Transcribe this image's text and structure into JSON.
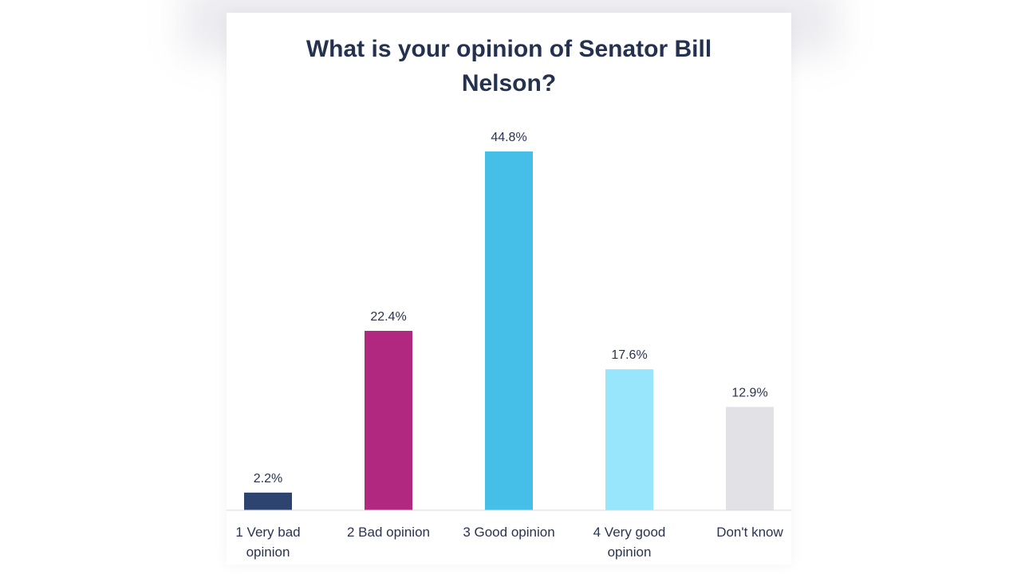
{
  "chart_data": {
    "type": "bar",
    "title_lines": [
      "What is your opinion of Senator Bill",
      "Nelson?"
    ],
    "categories": [
      [
        "1 Very bad",
        "opinion"
      ],
      [
        "2 Bad opinion"
      ],
      [
        "3 Good opinion"
      ],
      [
        "4 Very good",
        "opinion"
      ],
      [
        "Don't know"
      ]
    ],
    "values": [
      2.2,
      22.4,
      44.8,
      17.6,
      12.9
    ],
    "value_labels": [
      "2.2%",
      "22.4%",
      "44.8%",
      "17.6%",
      "12.9%"
    ],
    "colors": [
      "#2e4470",
      "#b0287f",
      "#46bfe8",
      "#97e6fb",
      "#e1e1e6"
    ],
    "baseline_color": "#d9d9d9",
    "ylim": [
      0,
      45
    ],
    "grid": false,
    "legend": "none",
    "xlabel": "",
    "ylabel": ""
  }
}
